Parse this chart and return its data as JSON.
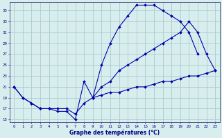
{
  "xlabel": "Graphe des températures (°C)",
  "bg_color": "#d8eeee",
  "grid_color": "#a8cccc",
  "line_color": "#0000aa",
  "yticks": [
    15,
    17,
    19,
    21,
    23,
    25,
    27,
    29,
    31,
    33,
    35
  ],
  "ylim": [
    14.5,
    36.5
  ],
  "xlim": [
    -0.5,
    23.5
  ],
  "line1_x": [
    0,
    1,
    2,
    3,
    4,
    5,
    6,
    7,
    8,
    9,
    10,
    11,
    12,
    13,
    14,
    15,
    16,
    17,
    18,
    19,
    20,
    21
  ],
  "line1_y": [
    21,
    19,
    18,
    17,
    17,
    16.5,
    16.5,
    15,
    22,
    19,
    25,
    29,
    32,
    34,
    36,
    36,
    36,
    35,
    34,
    33,
    31,
    27
  ],
  "line2_x": [
    0,
    1,
    2,
    3,
    4,
    5,
    6,
    7,
    8,
    9,
    10,
    11,
    12,
    13,
    14,
    15,
    16,
    17,
    18,
    19,
    20,
    21,
    22,
    23
  ],
  "line2_y": [
    21,
    19,
    18,
    17,
    17,
    17,
    17,
    16,
    18,
    19,
    21,
    22,
    24,
    25,
    26,
    27,
    28,
    29,
    30,
    31,
    33,
    31,
    27,
    24
  ],
  "line3_x": [
    9,
    10,
    11,
    12,
    13,
    14,
    15,
    16,
    17,
    18,
    19,
    20,
    21,
    22,
    23
  ],
  "line3_y": [
    19,
    19.5,
    20,
    20,
    20.5,
    21,
    21,
    21.5,
    22,
    22,
    22.5,
    23,
    23,
    23.5,
    24
  ]
}
